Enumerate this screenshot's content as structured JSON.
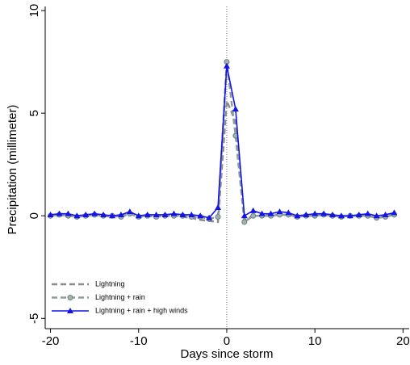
{
  "chart_data": {
    "type": "line",
    "x_label": "Days since storm",
    "y_label": "Precipitation (millimeter)",
    "x": [
      -20,
      -19,
      -18,
      -17,
      -16,
      -15,
      -14,
      -13,
      -12,
      -11,
      -10,
      -9,
      -8,
      -7,
      -6,
      -5,
      -4,
      -3,
      -2,
      -1,
      0,
      1,
      2,
      3,
      4,
      5,
      6,
      7,
      8,
      9,
      10,
      11,
      12,
      13,
      14,
      15,
      16,
      17,
      18,
      19
    ],
    "series": [
      {
        "name": "Lightning",
        "color": "#8c8c8c",
        "dashed": true,
        "marker": "none",
        "values": [
          0,
          0.05,
          0.05,
          -0.05,
          0,
          0.05,
          0,
          -0.05,
          0,
          0.1,
          -0.05,
          0,
          0,
          0,
          0.05,
          -0.05,
          -0.1,
          -0.2,
          -0.25,
          -0.3,
          5.6,
          4.6,
          -0.2,
          0,
          0,
          0.05,
          0.05,
          0.05,
          -0.05,
          0,
          0.05,
          0.05,
          0,
          -0.05,
          0,
          0,
          0.05,
          -0.05,
          0,
          0.1
        ]
      },
      {
        "name": "Lightning + rain",
        "color": "#8a9e9c",
        "dashed": true,
        "marker": "circle",
        "values": [
          0,
          0.05,
          0,
          -0.05,
          0,
          0.05,
          0,
          0,
          -0.05,
          0.1,
          -0.05,
          0,
          -0.05,
          0,
          0,
          0,
          -0.05,
          -0.05,
          -0.15,
          -0.05,
          7.5,
          3.9,
          -0.3,
          0,
          0,
          0,
          0.05,
          0.05,
          -0.05,
          0,
          0,
          0.05,
          0,
          -0.05,
          0,
          0,
          0,
          -0.1,
          -0.05,
          0.05
        ]
      },
      {
        "name": "Lightning + rain + high winds",
        "color": "#1414e6",
        "dashed": false,
        "marker": "triangle",
        "values": [
          0.05,
          0.1,
          0.1,
          0,
          0.05,
          0.1,
          0.05,
          0,
          0.05,
          0.2,
          0,
          0.05,
          0.05,
          0.05,
          0.1,
          0.05,
          0.05,
          0,
          -0.1,
          0.4,
          7.3,
          5.2,
          0,
          0.25,
          0.1,
          0.1,
          0.2,
          0.15,
          0,
          0.05,
          0.1,
          0.1,
          0.05,
          0,
          0,
          0.05,
          0.1,
          0,
          0.05,
          0.15
        ]
      }
    ],
    "xlim": [
      -20.6,
      20.7
    ],
    "ylim": [
      -5.5,
      10.2
    ],
    "xticks": [
      -20,
      -10,
      0,
      10,
      20
    ],
    "yticks": [
      -5,
      0,
      5,
      10
    ],
    "vline": 0,
    "legend": "lower-left"
  }
}
